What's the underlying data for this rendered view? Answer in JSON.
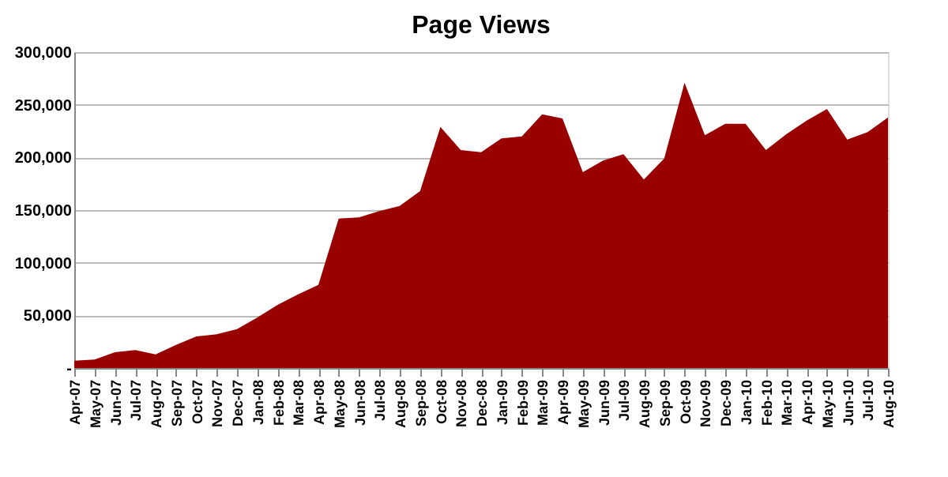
{
  "chart_data": {
    "type": "area",
    "title": "Page Views",
    "categories": [
      "Apr-07",
      "May-07",
      "Jun-07",
      "Jul-07",
      "Aug-07",
      "Sep-07",
      "Oct-07",
      "Nov-07",
      "Dec-07",
      "Jan-08",
      "Feb-08",
      "Mar-08",
      "Apr-08",
      "May-08",
      "Jun-08",
      "Jul-08",
      "Aug-08",
      "Sep-08",
      "Oct-08",
      "Nov-08",
      "Dec-08",
      "Jan-09",
      "Feb-09",
      "Mar-09",
      "Apr-09",
      "May-09",
      "Jun-09",
      "Jul-09",
      "Aug-09",
      "Sep-09",
      "Oct-09",
      "Nov-09",
      "Dec-09",
      "Jan-10",
      "Feb-10",
      "Mar-10",
      "Apr-10",
      "May-10",
      "Jun-10",
      "Jul-10",
      "Aug-10"
    ],
    "series": [
      {
        "color": "#990000",
        "values": [
          7000,
          8000,
          15000,
          17000,
          13000,
          22000,
          30000,
          32000,
          37000,
          48000,
          60000,
          70000,
          79000,
          142000,
          143000,
          149000,
          154000,
          168000,
          229000,
          207000,
          205000,
          218000,
          220000,
          241000,
          237000,
          186000,
          197000,
          203000,
          179000,
          199000,
          271000,
          221000,
          232000,
          232000,
          207000,
          222000,
          235000,
          246000,
          217000,
          224000,
          238000
        ]
      }
    ],
    "ylim": [
      0,
      300000
    ],
    "yticks": [
      {
        "value": 0,
        "label": "-"
      },
      {
        "value": 50000,
        "label": "50,000"
      },
      {
        "value": 100000,
        "label": "100,000"
      },
      {
        "value": 150000,
        "label": "150,000"
      },
      {
        "value": 200000,
        "label": "200,000"
      },
      {
        "value": 250000,
        "label": "250,000"
      },
      {
        "value": 300000,
        "label": "300,000"
      }
    ],
    "grid": "y"
  }
}
